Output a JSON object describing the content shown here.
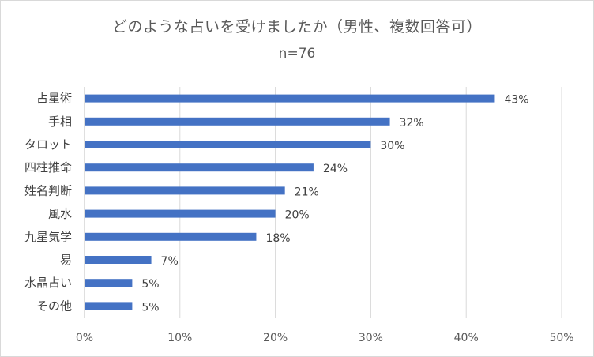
{
  "chart_data": {
    "type": "bar",
    "orientation": "horizontal",
    "title": "どのような占いを受けましたか（男性、複数回答可）",
    "subtitle": "n=76",
    "categories": [
      "占星術",
      "手相",
      "タロット",
      "四柱推命",
      "姓名判断",
      "風水",
      "九星気学",
      "易",
      "水晶占い",
      "その他"
    ],
    "values": [
      43,
      32,
      30,
      24,
      21,
      20,
      18,
      7,
      5,
      5
    ],
    "data_labels": [
      "43%",
      "32%",
      "30%",
      "24%",
      "21%",
      "20%",
      "18%",
      "7%",
      "5%",
      "5%"
    ],
    "x_ticks": [
      "0%",
      "10%",
      "20%",
      "30%",
      "40%",
      "50%"
    ],
    "xlim": [
      0,
      50
    ],
    "grid": true,
    "legend": "none",
    "bar_color": "#4472c4"
  }
}
